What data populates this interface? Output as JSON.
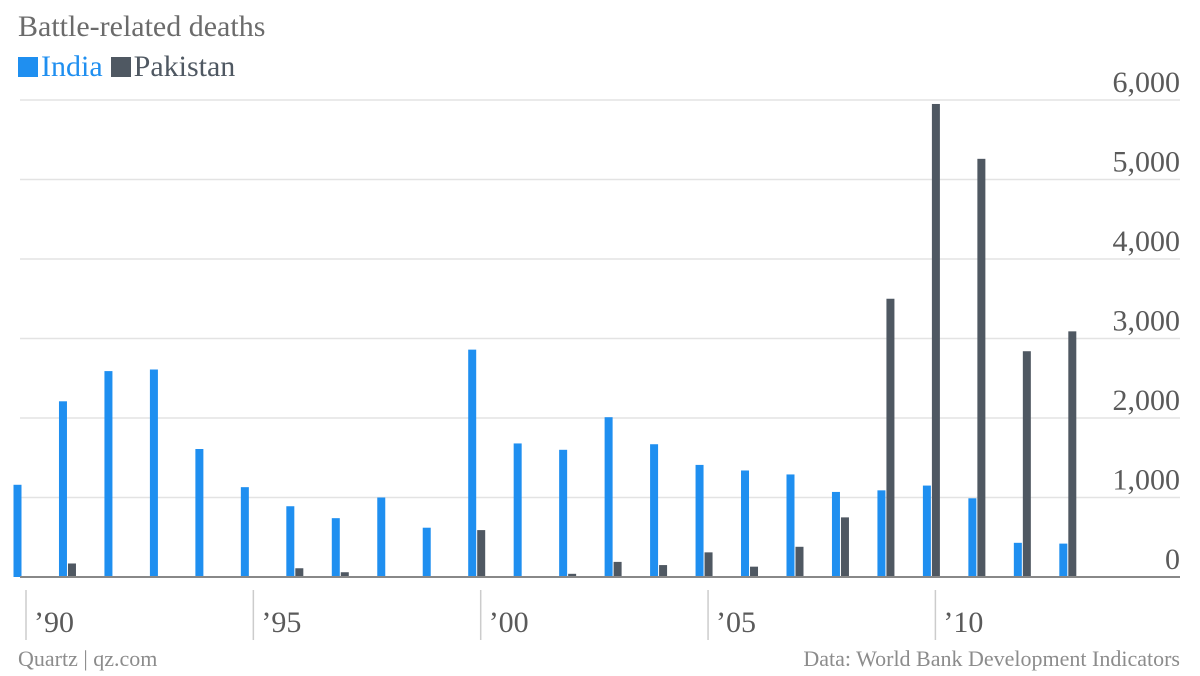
{
  "chart_data": {
    "type": "bar",
    "title": "Battle-related deaths",
    "x": [
      1990,
      1991,
      1992,
      1993,
      1994,
      1995,
      1996,
      1997,
      1998,
      1999,
      2000,
      2001,
      2002,
      2003,
      2004,
      2005,
      2006,
      2007,
      2008,
      2009,
      2010,
      2011,
      2012,
      2013
    ],
    "series": [
      {
        "name": "India",
        "color": "#1f8ff0",
        "values": [
          1160,
          2210,
          2590,
          2610,
          1610,
          1130,
          890,
          740,
          1000,
          620,
          2860,
          1680,
          1600,
          2010,
          1670,
          1410,
          1340,
          1290,
          1070,
          1090,
          1150,
          990,
          430,
          420
        ]
      },
      {
        "name": "Pakistan",
        "color": "#4f5862",
        "values": [
          0,
          170,
          0,
          0,
          0,
          0,
          110,
          60,
          0,
          0,
          590,
          0,
          40,
          190,
          150,
          310,
          130,
          380,
          750,
          3500,
          5950,
          5260,
          2840,
          3090
        ]
      }
    ],
    "xticks": [
      {
        "value": 1990,
        "label": "’90"
      },
      {
        "value": 1995,
        "label": "’95"
      },
      {
        "value": 2000,
        "label": "’00"
      },
      {
        "value": 2005,
        "label": "’05"
      },
      {
        "value": 2010,
        "label": "’10"
      }
    ],
    "yticks": [
      {
        "value": 0,
        "label": "0"
      },
      {
        "value": 1000,
        "label": "1,000"
      },
      {
        "value": 2000,
        "label": "2,000"
      },
      {
        "value": 3000,
        "label": "3,000"
      },
      {
        "value": 4000,
        "label": "4,000"
      },
      {
        "value": 5000,
        "label": "5,000"
      },
      {
        "value": 6000,
        "label": "6,000"
      }
    ],
    "ylim": [
      0,
      6000
    ],
    "grid": true,
    "legend_position": "top-left",
    "source_left": "Quartz | qz.com",
    "source_right": "Data: World Bank Development Indicators"
  }
}
